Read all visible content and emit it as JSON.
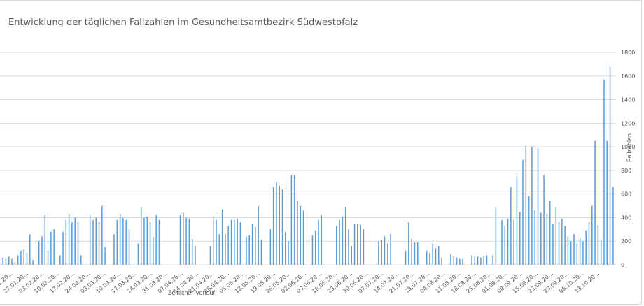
{
  "chart_data": {
    "type": "bar",
    "title": "Entwicklung der täglichen Fallzahlen im Gesundheitsamtbezirk Südwestpfalz",
    "ylabel": "Fallzahlen",
    "xlabel": "Zeitlicher Verlauf",
    "ylim": [
      0,
      1800
    ],
    "yticks": [
      0,
      200,
      400,
      600,
      800,
      1000,
      1200,
      1400,
      1600,
      1800
    ],
    "grid": true,
    "legend": "none",
    "bar_color": "#5b9bd5",
    "grid_color": "#d9d9d9",
    "xtick_labels": [
      "20.01.20…",
      "27.01.20…",
      "03.02.20…",
      "10.02.20…",
      "17.02.20…",
      "24.02.20…",
      "03.03.20…",
      "10.03.20…",
      "17.03.20…",
      "24.03.20…",
      "31.03.20…",
      "07.04.20…",
      "14.04.20…",
      "21.04.20…",
      "28.04.20…",
      "05.05.20…",
      "12.05.20…",
      "19.05.20…",
      "26.05.20…",
      "02.06.20…",
      "09.06.20…",
      "16.06.20…",
      "23.06.20…",
      "30.06.20…",
      "07.07.20…",
      "14.07.20…",
      "21.07.20…",
      "28.07.20…",
      "04.08.20…",
      "11.08.20…",
      "18.08.20…",
      "25.08.20…",
      "01.09.20…",
      "08.09.20…",
      "15.09.20…",
      "22.09.20…",
      "29.09.20…",
      "06.10.20…",
      "13.10.20…"
    ],
    "values": [
      60,
      55,
      70,
      50,
      20,
      80,
      120,
      130,
      100,
      260,
      40,
      0,
      200,
      240,
      420,
      120,
      280,
      300,
      0,
      80,
      280,
      380,
      430,
      360,
      400,
      360,
      80,
      0,
      0,
      420,
      380,
      400,
      360,
      500,
      150,
      0,
      0,
      260,
      380,
      430,
      400,
      380,
      300,
      0,
      0,
      180,
      490,
      400,
      410,
      360,
      240,
      420,
      380,
      0,
      0,
      0,
      0,
      0,
      0,
      420,
      440,
      400,
      390,
      220,
      160,
      0,
      0,
      0,
      0,
      160,
      410,
      380,
      260,
      470,
      260,
      330,
      380,
      380,
      390,
      360,
      0,
      240,
      250,
      350,
      320,
      500,
      210,
      0,
      0,
      300,
      660,
      700,
      670,
      640,
      280,
      200,
      760,
      760,
      540,
      500,
      460,
      0,
      0,
      250,
      290,
      380,
      420,
      0,
      0,
      0,
      0,
      330,
      380,
      410,
      490,
      300,
      160,
      350,
      350,
      340,
      300,
      0,
      0,
      0,
      0,
      200,
      210,
      240,
      180,
      260,
      0,
      0,
      0,
      0,
      120,
      360,
      220,
      190,
      190,
      0,
      0,
      120,
      100,
      180,
      140,
      160,
      60,
      0,
      0,
      90,
      70,
      60,
      50,
      50,
      0,
      0,
      80,
      70,
      70,
      60,
      70,
      80,
      0,
      80,
      490,
      0,
      380,
      330,
      390,
      660,
      380,
      750,
      450,
      890,
      1010,
      580,
      1000,
      460,
      990,
      440,
      760,
      430,
      540,
      350,
      490,
      360,
      390,
      330,
      240,
      200,
      260,
      180,
      230,
      200,
      290,
      360,
      500,
      1050,
      340,
      210,
      1570,
      1050,
      1680,
      660
    ]
  }
}
